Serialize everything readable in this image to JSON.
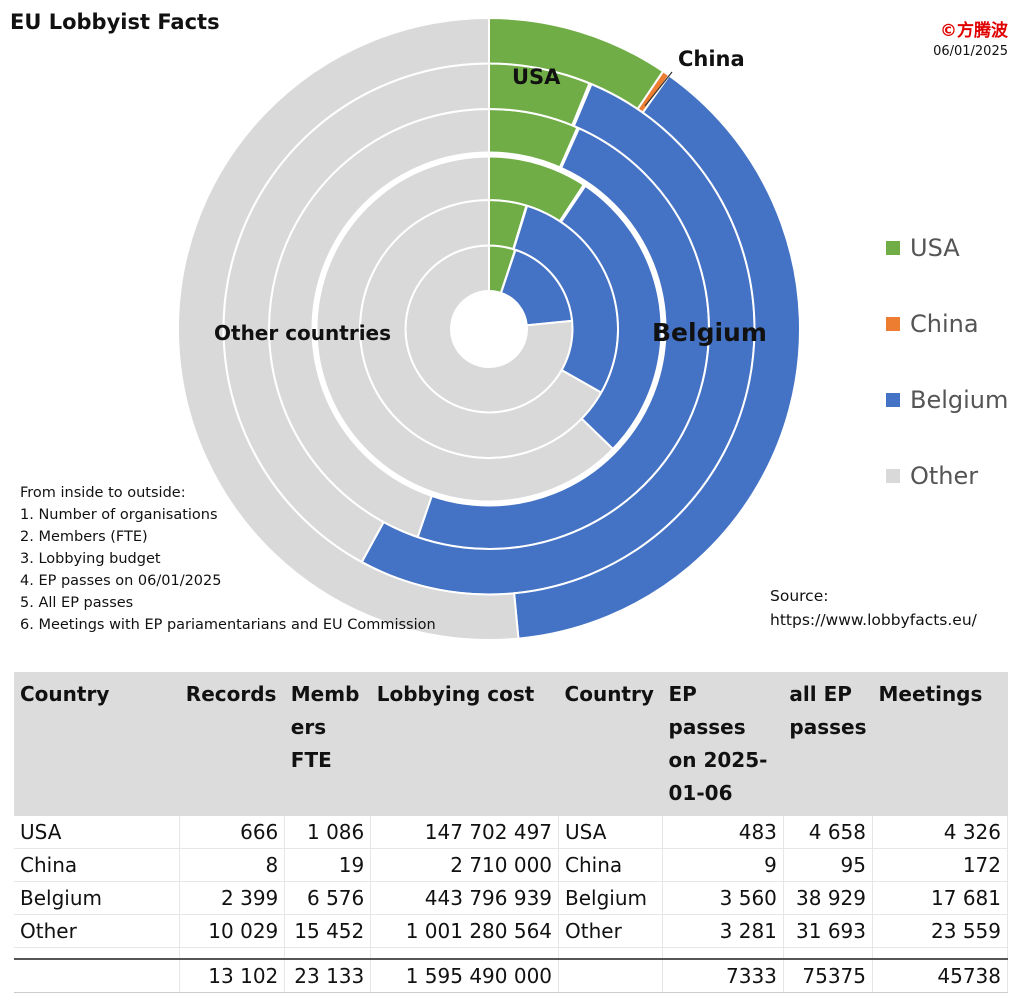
{
  "header": {
    "title": "EU Lobbyist Facts",
    "copyright": "©方腾波",
    "date": "06/01/2025"
  },
  "chart_data": {
    "type": "doughnut",
    "series_labels_inside_to_outside": [
      "Number of organisations",
      "Members (FTE)",
      "Lobbying budget",
      "EP passes on 06/01/2025",
      "All EP passes",
      "Meetings with EP pariamentarians and EU Commission"
    ],
    "categories": [
      "USA",
      "China",
      "Belgium",
      "Other"
    ],
    "colors": {
      "USA": "#70ad47",
      "China": "#ed7d31",
      "Belgium": "#4472c4",
      "Other": "#d9d9d9"
    },
    "rings": [
      {
        "values": [
          666,
          8,
          2399,
          10029
        ]
      },
      {
        "values": [
          1086,
          19,
          6576,
          15452
        ]
      },
      {
        "values": [
          147702497,
          2710000,
          443796939,
          1001280564
        ]
      },
      {
        "values": [
          483,
          9,
          3560,
          3281
        ]
      },
      {
        "values": [
          4658,
          95,
          38929,
          31693
        ]
      },
      {
        "values": [
          4326,
          172,
          17681,
          23559
        ]
      }
    ],
    "annotations": {
      "usa": "USA",
      "china": "China",
      "belgium": "Belgium",
      "other": "Other countries"
    },
    "legend": {
      "position": "right",
      "items": [
        "USA",
        "China",
        "Belgium",
        "Other"
      ]
    }
  },
  "notes": {
    "heading": "From inside to outside:",
    "items": [
      "1. Number of organisations",
      "2. Members (FTE)",
      "3. Lobbying budget",
      "4. EP passes on 06/01/2025",
      "5. All EP passes",
      "6. Meetings with EP pariamentarians and EU Commission"
    ]
  },
  "source": {
    "label": "Source:",
    "url": "https://www.lobbyfacts.eu/"
  },
  "table": {
    "headers": [
      "Country",
      "Records",
      "Memb ers FTE",
      "Lobbying cost",
      "Country",
      "EP passes on 2025-01-06",
      "all EP passes",
      "Meetings"
    ],
    "rows": [
      [
        "USA",
        "666",
        "1 086",
        "147 702 497",
        "USA",
        "483",
        "4 658",
        "4 326"
      ],
      [
        "China",
        "8",
        "19",
        "2 710 000",
        "China",
        "9",
        "95",
        "172"
      ],
      [
        "Belgium",
        "2 399",
        "6 576",
        "443 796 939",
        "Belgium",
        "3 560",
        "38 929",
        "17 681"
      ],
      [
        "Other",
        "10 029",
        "15 452",
        "1 001 280 564",
        "Other",
        "3 281",
        "31 693",
        "23 559"
      ]
    ],
    "totals": [
      "",
      "13 102",
      "23 133",
      "1 595 490 000",
      "",
      "7333",
      "75375",
      "45738"
    ]
  }
}
